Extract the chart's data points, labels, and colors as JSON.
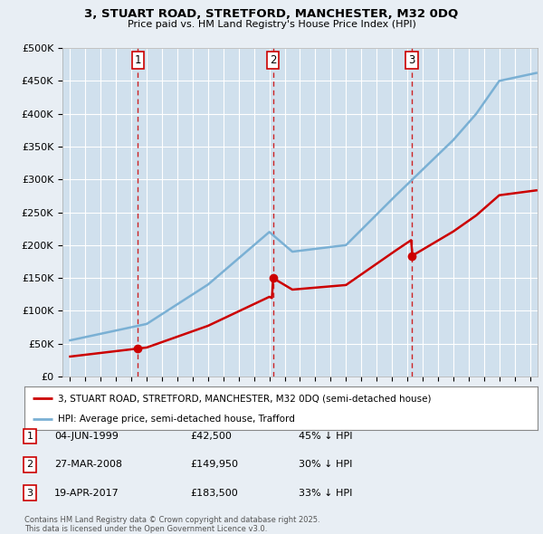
{
  "title_line1": "3, STUART ROAD, STRETFORD, MANCHESTER, M32 0DQ",
  "title_line2": "Price paid vs. HM Land Registry's House Price Index (HPI)",
  "ylabel_ticks": [
    "£0",
    "£50K",
    "£100K",
    "£150K",
    "£200K",
    "£250K",
    "£300K",
    "£350K",
    "£400K",
    "£450K",
    "£500K"
  ],
  "ytick_values": [
    0,
    50000,
    100000,
    150000,
    200000,
    250000,
    300000,
    350000,
    400000,
    450000,
    500000
  ],
  "xlim": [
    1994.5,
    2025.5
  ],
  "ylim": [
    0,
    500000
  ],
  "purchase_dates": [
    1999.42,
    2008.23,
    2017.3
  ],
  "purchase_prices": [
    42500,
    149950,
    183500
  ],
  "legend_line1": "3, STUART ROAD, STRETFORD, MANCHESTER, M32 0DQ (semi-detached house)",
  "legend_line2": "HPI: Average price, semi-detached house, Trafford",
  "transaction_labels": [
    "1",
    "2",
    "3"
  ],
  "transaction_dates_str": [
    "04-JUN-1999",
    "27-MAR-2008",
    "19-APR-2017"
  ],
  "transaction_prices_str": [
    "£42,500",
    "£149,950",
    "£183,500"
  ],
  "transaction_pct_str": [
    "45% ↓ HPI",
    "30% ↓ HPI",
    "33% ↓ HPI"
  ],
  "footer_text": "Contains HM Land Registry data © Crown copyright and database right 2025.\nThis data is licensed under the Open Government Licence v3.0.",
  "price_line_color": "#cc0000",
  "hpi_line_color": "#7ab0d4",
  "vline_color": "#cc0000",
  "background_color": "#e8eef4",
  "plot_bg_color": "#d0e0ed"
}
